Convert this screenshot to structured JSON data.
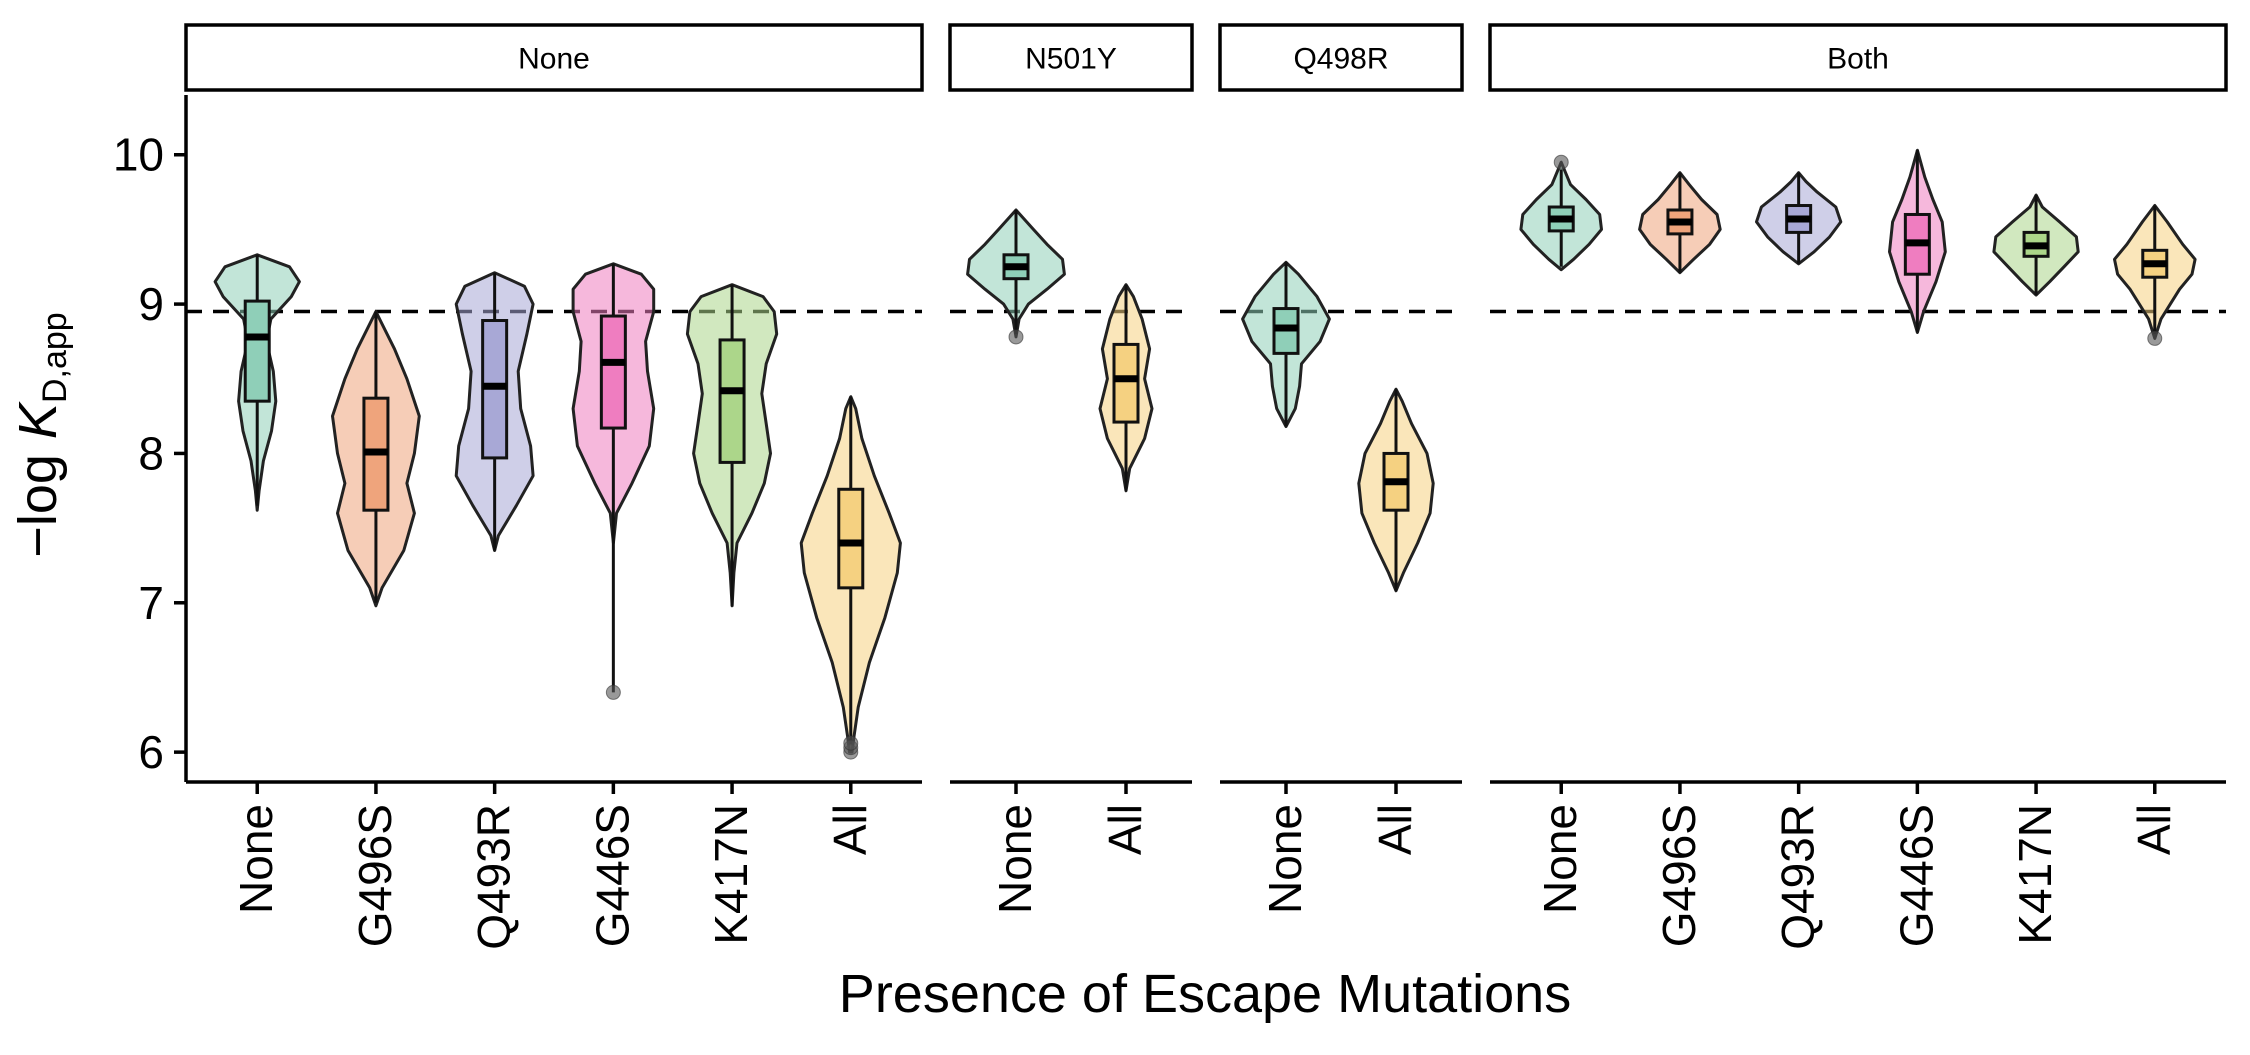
{
  "chart_data": {
    "type": "violin",
    "xlabel": "Presence of Escape Mutations",
    "ylabel_main": "−log ",
    "ylabel_italic": "K",
    "ylabel_sub": "D,app",
    "ylim": [
      5.8,
      10.4
    ],
    "yticks": [
      6,
      7,
      8,
      9,
      10
    ],
    "reference_line": 8.95,
    "reference_line_style": "dashed",
    "grid": false,
    "legend": "none",
    "facets": [
      {
        "label": "None",
        "groups": [
          {
            "label": "None",
            "min": 7.62,
            "q1": 8.35,
            "median": 8.78,
            "q3": 9.02,
            "max": 9.33,
            "whisker_low": 7.65,
            "whisker_high": 9.33,
            "outliers": [],
            "color": "#8fcfb8",
            "shape": [
              [
                7.62,
                0.0
              ],
              [
                7.75,
                0.03
              ],
              [
                7.95,
                0.1
              ],
              [
                8.15,
                0.23
              ],
              [
                8.35,
                0.3
              ],
              [
                8.55,
                0.26
              ],
              [
                8.75,
                0.15
              ],
              [
                8.9,
                0.22
              ],
              [
                9.05,
                0.55
              ],
              [
                9.15,
                0.68
              ],
              [
                9.25,
                0.52
              ],
              [
                9.33,
                0.0
              ]
            ]
          },
          {
            "label": "G496S",
            "min": 6.98,
            "q1": 7.62,
            "median": 8.01,
            "q3": 8.37,
            "max": 8.95,
            "whisker_low": 7.0,
            "whisker_high": 8.95,
            "outliers": [],
            "color": "#efa47c",
            "shape": [
              [
                6.98,
                0.0
              ],
              [
                7.1,
                0.1
              ],
              [
                7.35,
                0.45
              ],
              [
                7.6,
                0.62
              ],
              [
                7.8,
                0.5
              ],
              [
                8.0,
                0.62
              ],
              [
                8.25,
                0.7
              ],
              [
                8.5,
                0.5
              ],
              [
                8.7,
                0.3
              ],
              [
                8.95,
                0.0
              ]
            ]
          },
          {
            "label": "Q493R",
            "min": 7.35,
            "q1": 7.97,
            "median": 8.45,
            "q3": 8.89,
            "max": 9.21,
            "whisker_low": 7.35,
            "whisker_high": 9.21,
            "outliers": [],
            "color": "#a8a8d6",
            "shape": [
              [
                7.35,
                0.0
              ],
              [
                7.45,
                0.06
              ],
              [
                7.65,
                0.35
              ],
              [
                7.85,
                0.62
              ],
              [
                8.05,
                0.58
              ],
              [
                8.3,
                0.42
              ],
              [
                8.55,
                0.38
              ],
              [
                8.8,
                0.52
              ],
              [
                9.0,
                0.62
              ],
              [
                9.12,
                0.48
              ],
              [
                9.21,
                0.0
              ]
            ]
          },
          {
            "label": "G446S",
            "min": 6.4,
            "q1": 8.17,
            "median": 8.61,
            "q3": 8.92,
            "max": 9.27,
            "whisker_low": 6.4,
            "whisker_high": 9.27,
            "outliers": [
              6.4
            ],
            "color": "#ef7dc0",
            "shape": [
              [
                7.4,
                0.0
              ],
              [
                7.6,
                0.05
              ],
              [
                7.8,
                0.3
              ],
              [
                8.05,
                0.58
              ],
              [
                8.3,
                0.65
              ],
              [
                8.55,
                0.55
              ],
              [
                8.75,
                0.52
              ],
              [
                8.95,
                0.65
              ],
              [
                9.1,
                0.65
              ],
              [
                9.2,
                0.45
              ],
              [
                9.27,
                0.0
              ]
            ]
          },
          {
            "label": "K417N",
            "min": 6.98,
            "q1": 7.94,
            "median": 8.42,
            "q3": 8.76,
            "max": 9.13,
            "whisker_low": 6.98,
            "whisker_high": 9.13,
            "outliers": [],
            "color": "#acd68a",
            "shape": [
              [
                6.98,
                0.0
              ],
              [
                7.2,
                0.03
              ],
              [
                7.4,
                0.08
              ],
              [
                7.6,
                0.32
              ],
              [
                7.8,
                0.52
              ],
              [
                8.0,
                0.62
              ],
              [
                8.2,
                0.55
              ],
              [
                8.4,
                0.48
              ],
              [
                8.6,
                0.55
              ],
              [
                8.8,
                0.72
              ],
              [
                8.95,
                0.68
              ],
              [
                9.05,
                0.5
              ],
              [
                9.13,
                0.0
              ]
            ]
          },
          {
            "label": "All",
            "min": 6.0,
            "q1": 7.1,
            "median": 7.4,
            "q3": 7.76,
            "max": 8.38,
            "whisker_low": 6.05,
            "whisker_high": 8.38,
            "outliers": [
              6.0,
              6.03,
              6.06
            ],
            "color": "#f5d181",
            "shape": [
              [
                6.0,
                0.02
              ],
              [
                6.1,
                0.05
              ],
              [
                6.3,
                0.12
              ],
              [
                6.6,
                0.3
              ],
              [
                6.9,
                0.55
              ],
              [
                7.2,
                0.75
              ],
              [
                7.4,
                0.8
              ],
              [
                7.6,
                0.62
              ],
              [
                7.85,
                0.38
              ],
              [
                8.1,
                0.18
              ],
              [
                8.3,
                0.08
              ],
              [
                8.38,
                0.0
              ]
            ]
          }
        ]
      },
      {
        "label": "N501Y",
        "groups": [
          {
            "label": "None",
            "min": 8.78,
            "q1": 9.17,
            "median": 9.25,
            "q3": 9.33,
            "max": 9.63,
            "whisker_low": 8.8,
            "whisker_high": 9.63,
            "outliers": [
              8.78
            ],
            "color": "#8fcfb8",
            "shape": [
              [
                8.78,
                0.0
              ],
              [
                8.9,
                0.05
              ],
              [
                9.0,
                0.2
              ],
              [
                9.1,
                0.5
              ],
              [
                9.2,
                0.78
              ],
              [
                9.3,
                0.75
              ],
              [
                9.4,
                0.5
              ],
              [
                9.5,
                0.28
              ],
              [
                9.63,
                0.0
              ]
            ]
          },
          {
            "label": "All",
            "min": 7.75,
            "q1": 8.21,
            "median": 8.5,
            "q3": 8.73,
            "max": 9.13,
            "whisker_low": 7.75,
            "whisker_high": 9.13,
            "outliers": [],
            "color": "#f5d181",
            "shape": [
              [
                7.75,
                0.0
              ],
              [
                7.9,
                0.06
              ],
              [
                8.1,
                0.3
              ],
              [
                8.3,
                0.42
              ],
              [
                8.5,
                0.3
              ],
              [
                8.7,
                0.38
              ],
              [
                8.9,
                0.26
              ],
              [
                9.05,
                0.12
              ],
              [
                9.13,
                0.0
              ]
            ]
          }
        ]
      },
      {
        "label": "Q498R",
        "groups": [
          {
            "label": "None",
            "min": 8.18,
            "q1": 8.67,
            "median": 8.84,
            "q3": 8.97,
            "max": 9.28,
            "whisker_low": 8.18,
            "whisker_high": 9.28,
            "outliers": [],
            "color": "#8fcfb8",
            "shape": [
              [
                8.18,
                0.0
              ],
              [
                8.3,
                0.15
              ],
              [
                8.45,
                0.22
              ],
              [
                8.6,
                0.25
              ],
              [
                8.75,
                0.55
              ],
              [
                8.9,
                0.7
              ],
              [
                9.05,
                0.5
              ],
              [
                9.2,
                0.2
              ],
              [
                9.28,
                0.0
              ]
            ]
          },
          {
            "label": "All",
            "min": 7.08,
            "q1": 7.62,
            "median": 7.81,
            "q3": 8.0,
            "max": 8.43,
            "whisker_low": 7.08,
            "whisker_high": 8.43,
            "outliers": [],
            "color": "#f5d181",
            "shape": [
              [
                7.08,
                0.0
              ],
              [
                7.2,
                0.12
              ],
              [
                7.4,
                0.35
              ],
              [
                7.6,
                0.55
              ],
              [
                7.8,
                0.6
              ],
              [
                8.0,
                0.5
              ],
              [
                8.2,
                0.25
              ],
              [
                8.35,
                0.1
              ],
              [
                8.43,
                0.0
              ]
            ]
          }
        ]
      },
      {
        "label": "Both",
        "groups": [
          {
            "label": "None",
            "min": 9.23,
            "q1": 9.49,
            "median": 9.57,
            "q3": 9.65,
            "max": 9.95,
            "whisker_low": 9.25,
            "whisker_high": 9.9,
            "outliers": [
              9.95
            ],
            "color": "#8fcfb8",
            "shape": [
              [
                9.23,
                0.0
              ],
              [
                9.3,
                0.2
              ],
              [
                9.4,
                0.45
              ],
              [
                9.5,
                0.65
              ],
              [
                9.6,
                0.62
              ],
              [
                9.7,
                0.4
              ],
              [
                9.8,
                0.15
              ],
              [
                9.95,
                0.0
              ]
            ]
          },
          {
            "label": "G496S",
            "min": 9.21,
            "q1": 9.47,
            "median": 9.55,
            "q3": 9.63,
            "max": 9.88,
            "whisker_low": 9.21,
            "whisker_high": 9.88,
            "outliers": [],
            "color": "#efa47c",
            "shape": [
              [
                9.21,
                0.0
              ],
              [
                9.3,
                0.22
              ],
              [
                9.4,
                0.48
              ],
              [
                9.5,
                0.65
              ],
              [
                9.6,
                0.6
              ],
              [
                9.7,
                0.35
              ],
              [
                9.8,
                0.15
              ],
              [
                9.88,
                0.0
              ]
            ]
          },
          {
            "label": "Q493R",
            "min": 9.27,
            "q1": 9.48,
            "median": 9.57,
            "q3": 9.66,
            "max": 9.88,
            "whisker_low": 9.27,
            "whisker_high": 9.88,
            "outliers": [],
            "color": "#a8a8d6",
            "shape": [
              [
                9.27,
                0.0
              ],
              [
                9.35,
                0.25
              ],
              [
                9.45,
                0.5
              ],
              [
                9.55,
                0.68
              ],
              [
                9.65,
                0.6
              ],
              [
                9.75,
                0.3
              ],
              [
                9.82,
                0.12
              ],
              [
                9.88,
                0.0
              ]
            ]
          },
          {
            "label": "G446S",
            "min": 8.81,
            "q1": 9.2,
            "median": 9.41,
            "q3": 9.6,
            "max": 10.03,
            "whisker_low": 8.81,
            "whisker_high": 10.03,
            "outliers": [],
            "color": "#ef7dc0",
            "shape": [
              [
                8.81,
                0.0
              ],
              [
                8.95,
                0.1
              ],
              [
                9.15,
                0.3
              ],
              [
                9.35,
                0.45
              ],
              [
                9.55,
                0.4
              ],
              [
                9.7,
                0.25
              ],
              [
                9.85,
                0.12
              ],
              [
                10.03,
                0.0
              ]
            ]
          },
          {
            "label": "K417N",
            "min": 9.06,
            "q1": 9.32,
            "median": 9.39,
            "q3": 9.48,
            "max": 9.73,
            "whisker_low": 9.06,
            "whisker_high": 9.73,
            "outliers": [],
            "color": "#acd68a",
            "shape": [
              [
                9.06,
                0.0
              ],
              [
                9.15,
                0.22
              ],
              [
                9.25,
                0.45
              ],
              [
                9.35,
                0.68
              ],
              [
                9.45,
                0.65
              ],
              [
                9.55,
                0.38
              ],
              [
                9.65,
                0.1
              ],
              [
                9.73,
                0.0
              ]
            ]
          },
          {
            "label": "All",
            "min": 8.77,
            "q1": 9.18,
            "median": 9.27,
            "q3": 9.36,
            "max": 9.66,
            "whisker_low": 8.8,
            "whisker_high": 9.66,
            "outliers": [
              8.77
            ],
            "color": "#f5d181",
            "shape": [
              [
                8.77,
                0.0
              ],
              [
                8.9,
                0.1
              ],
              [
                9.0,
                0.25
              ],
              [
                9.1,
                0.4
              ],
              [
                9.2,
                0.6
              ],
              [
                9.3,
                0.65
              ],
              [
                9.4,
                0.45
              ],
              [
                9.55,
                0.2
              ],
              [
                9.66,
                0.0
              ]
            ]
          }
        ]
      }
    ]
  }
}
